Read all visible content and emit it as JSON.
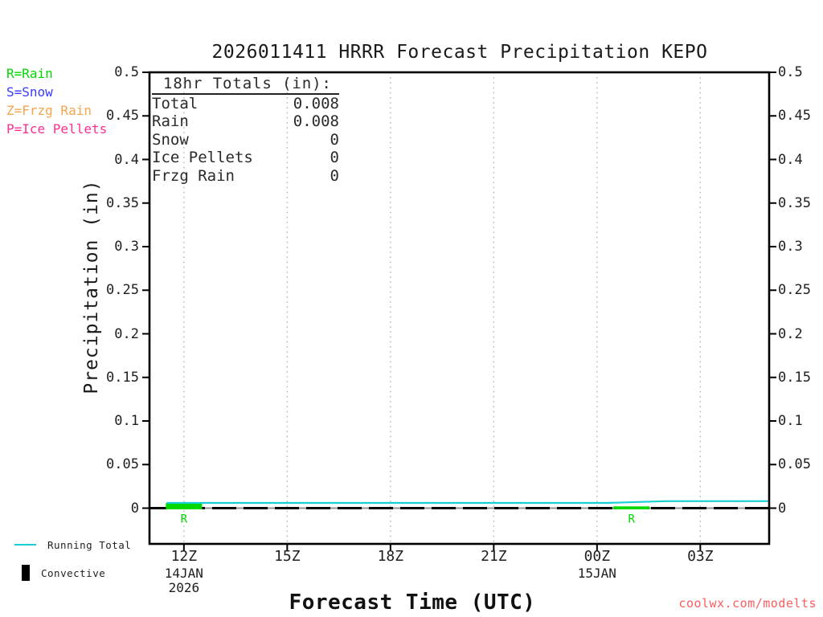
{
  "title": "2026011411 HRRR Forecast Precipitation KEPO",
  "watermark": {
    "text": "coolwx.com/modelts",
    "color": "#fb5e5e"
  },
  "ptype_legend": [
    {
      "label": "R=Rain",
      "color": "#00d800"
    },
    {
      "label": "S=Snow",
      "color": "#3a3aff"
    },
    {
      "label": "Z=Frzg Rain",
      "color": "#f6a54f"
    },
    {
      "label": "P=Ice Pellets",
      "color": "#ff2f92"
    }
  ],
  "totals_box": {
    "header": "18hr Totals (in):",
    "rows": [
      {
        "label": "Total",
        "value": "0.008"
      },
      {
        "label": "Rain",
        "value": "0.008"
      },
      {
        "label": "Snow",
        "value": "0"
      },
      {
        "label": "Ice Pellets",
        "value": "0"
      },
      {
        "label": "Frzg Rain",
        "value": "0"
      }
    ]
  },
  "series_legend": [
    {
      "label": "Running Total",
      "swatch": "line",
      "color": "#17d0d4"
    },
    {
      "label": "Convective",
      "swatch": "bar",
      "color": "#000000"
    }
  ],
  "chart_data": {
    "type": "line+bar",
    "title": "2026011411 HRRR Forecast Precipitation KEPO",
    "xlabel": "Forecast Time (UTC)",
    "ylabel": "Precipitation (in)",
    "ylim": [
      0,
      0.5
    ],
    "x_range_hours_utc": [
      11,
      29
    ],
    "grid": "vertical dotted gridlines at 3-hour ticks",
    "legend_position": "bottom-left",
    "y_ticks": [
      {
        "value": 0.5,
        "label": "0.5"
      },
      {
        "value": 0.45,
        "label": "0.45"
      },
      {
        "value": 0.4,
        "label": "0.4"
      },
      {
        "value": 0.35,
        "label": "0.35"
      },
      {
        "value": 0.3,
        "label": "0.3"
      },
      {
        "value": 0.25,
        "label": "0.25"
      },
      {
        "value": 0.2,
        "label": "0.2"
      },
      {
        "value": 0.15,
        "label": "0.15"
      },
      {
        "value": 0.1,
        "label": "0.1"
      },
      {
        "value": 0.05,
        "label": "0.05"
      },
      {
        "value": 0,
        "label": "0"
      }
    ],
    "x_ticks": [
      {
        "hour": 12,
        "label": "12Z",
        "sub": [
          "14JAN",
          "2026"
        ]
      },
      {
        "hour": 15,
        "label": "15Z",
        "sub": []
      },
      {
        "hour": 18,
        "label": "18Z",
        "sub": []
      },
      {
        "hour": 21,
        "label": "21Z",
        "sub": []
      },
      {
        "hour": 24,
        "label": "00Z",
        "sub": [
          "15JAN"
        ]
      },
      {
        "hour": 27,
        "label": "03Z",
        "sub": []
      }
    ],
    "series": [
      {
        "name": "Running Total",
        "type": "line",
        "color": "#17d0d4",
        "points": [
          [
            11.5,
            0.006
          ],
          [
            24.3,
            0.006
          ],
          [
            26.0,
            0.008
          ],
          [
            29.0,
            0.008
          ]
        ]
      },
      {
        "name": "Rain (hourly)",
        "type": "bar",
        "color": "#00d800",
        "marker": "R",
        "bars": [
          {
            "hour": 12,
            "value": 0.006
          },
          {
            "hour": 25,
            "value": 0.002
          }
        ]
      },
      {
        "name": "Convective",
        "type": "bar",
        "color": "#000000",
        "bars": []
      }
    ],
    "zero_line": {
      "y": 0,
      "style": "dashed",
      "color": "#000000"
    }
  }
}
